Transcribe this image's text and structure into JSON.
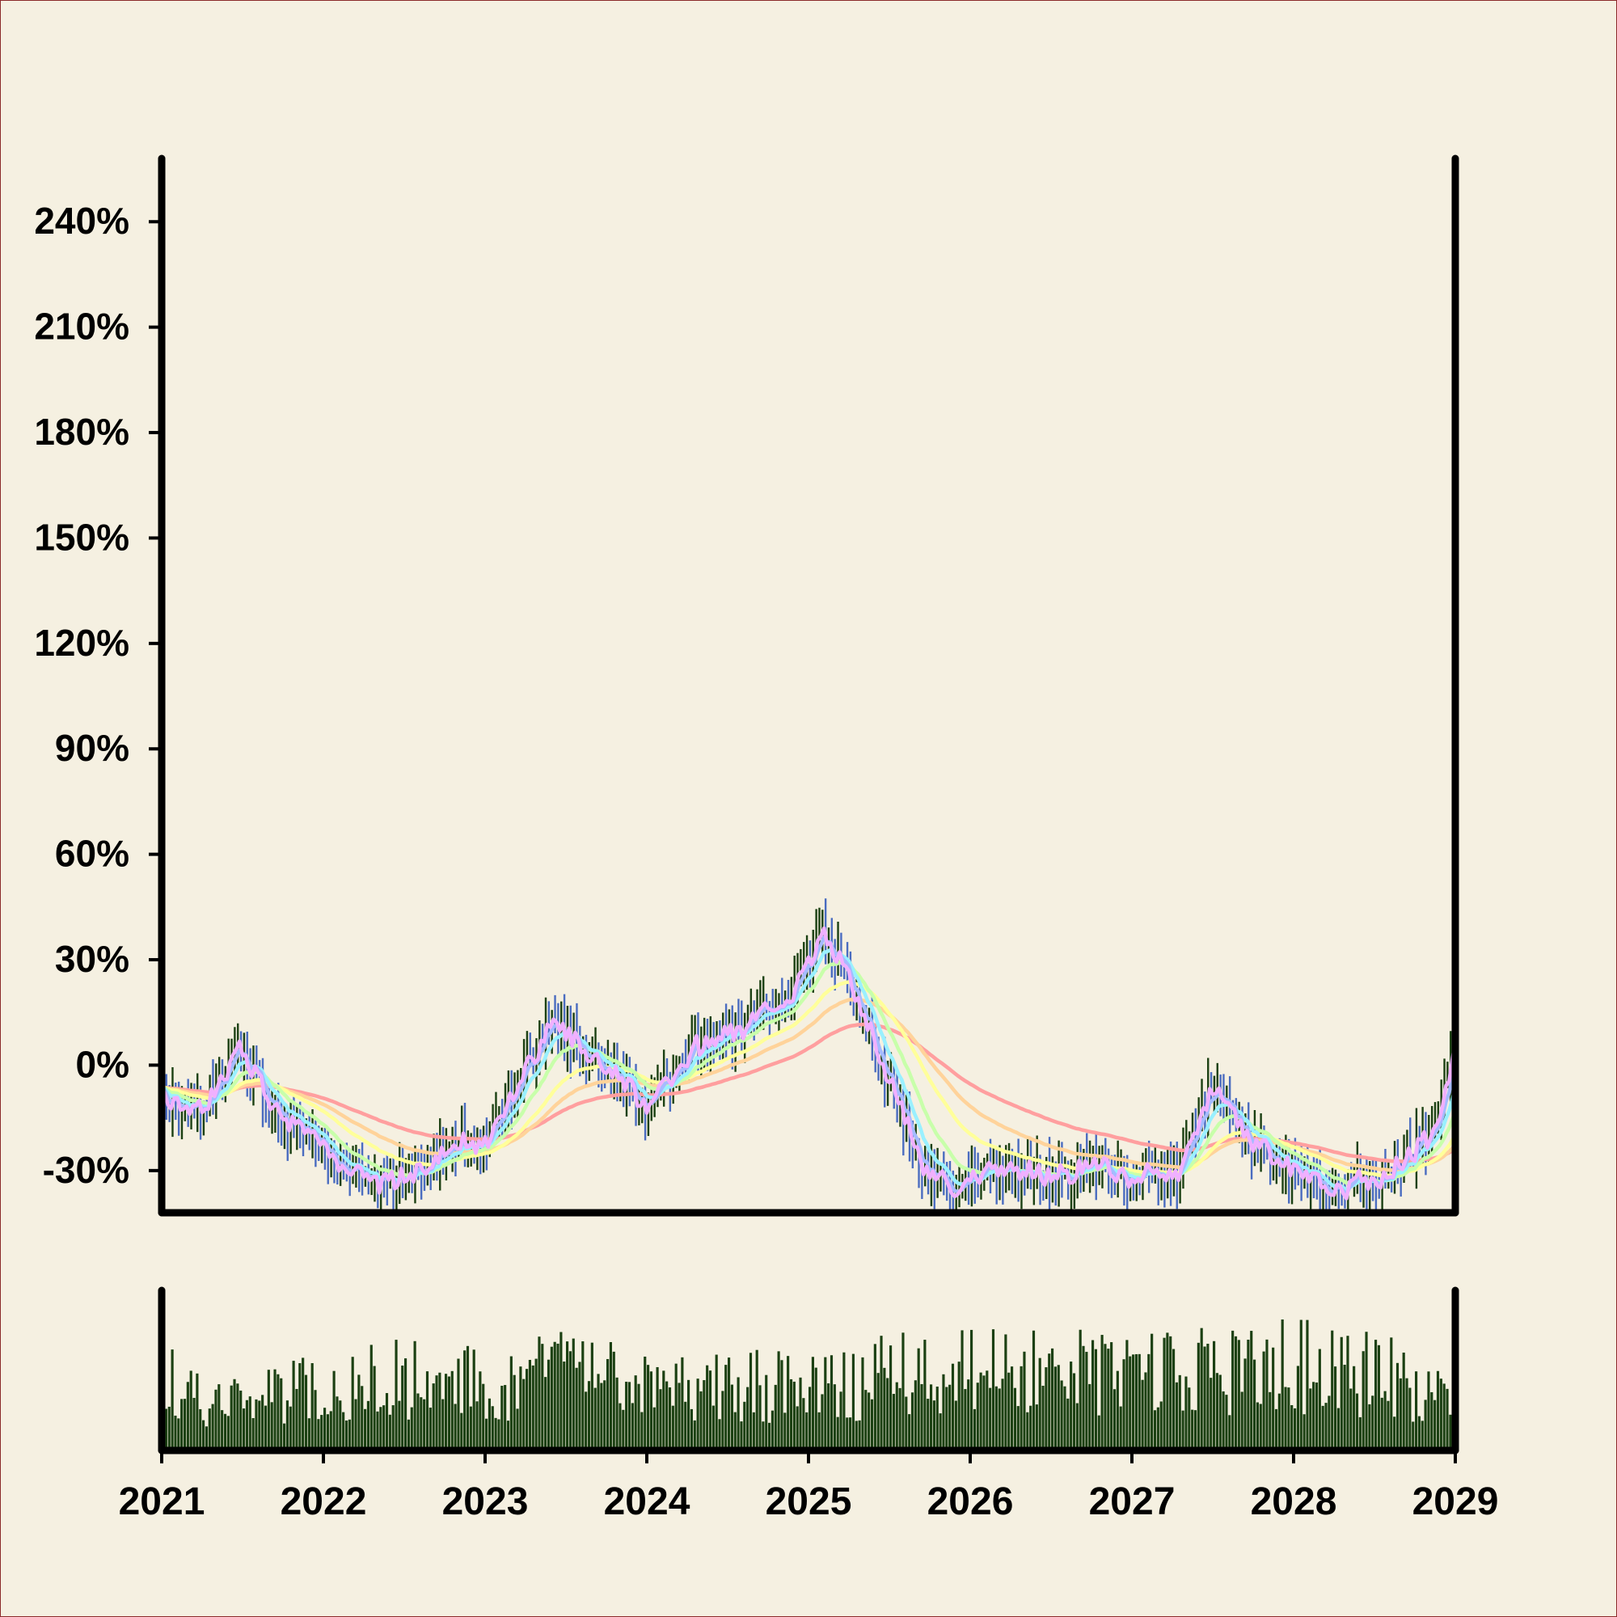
{
  "chart_data": {
    "type": "line",
    "title": "",
    "xlabel": "",
    "ylabel": "",
    "x_tick_labels": [
      "2021",
      "2022",
      "2023",
      "2024",
      "2025",
      "2026",
      "2027",
      "2028",
      "2029"
    ],
    "x_range": [
      2021,
      2029
    ],
    "y_tick_labels": [
      "-30%",
      "0%",
      "30%",
      "60%",
      "90%",
      "120%",
      "150%",
      "180%",
      "210%",
      "240%"
    ],
    "y_ticks": [
      -30,
      0,
      30,
      60,
      90,
      120,
      150,
      180,
      210,
      240
    ],
    "ylim": [
      -42,
      258
    ],
    "grid": false,
    "legend": "none",
    "up_color": "#1b4012",
    "down_color": "#4a6cc0",
    "volume_color": "#1b4012",
    "price_anchors": {
      "x": [
        2021.0,
        2021.2,
        2021.5,
        2021.7,
        2022.0,
        2022.3,
        2022.6,
        2022.8,
        2023.0,
        2023.2,
        2023.4,
        2023.7,
        2024.0,
        2024.3,
        2024.6,
        2024.9,
        2025.1,
        2025.25,
        2025.5,
        2025.7,
        2025.9,
        2026.2,
        2026.5,
        2026.8,
        2027.0,
        2027.3,
        2027.5,
        2027.7,
        2028.0,
        2028.3,
        2028.6,
        2028.9,
        2029.0
      ],
      "y": [
        -8,
        -15,
        5,
        -12,
        -25,
        -35,
        -30,
        -22,
        -22,
        -5,
        12,
        2,
        -12,
        5,
        10,
        20,
        38,
        25,
        -5,
        -28,
        -35,
        -28,
        -32,
        -28,
        -32,
        -30,
        -5,
        -20,
        -30,
        -35,
        -30,
        -18,
        5
      ]
    },
    "volume_anchors": {
      "x": [
        2021.0,
        2021.3,
        2021.6,
        2022.0,
        2022.5,
        2023.0,
        2023.5,
        2024.0,
        2024.5,
        2025.0,
        2025.5,
        2026.0,
        2026.5,
        2027.0,
        2027.5,
        2028.0,
        2028.5,
        2029.0
      ],
      "y": [
        0.55,
        0.3,
        0.4,
        0.45,
        0.55,
        0.5,
        0.55,
        0.48,
        0.5,
        0.45,
        0.55,
        0.6,
        0.58,
        0.55,
        0.6,
        0.65,
        0.58,
        0.35
      ]
    },
    "series": [
      {
        "color": "#ff9f9f",
        "smoothing": 0.02
      },
      {
        "color": "#ffd39a",
        "smoothing": 0.035
      },
      {
        "color": "#ffff9a",
        "smoothing": 0.055
      },
      {
        "color": "#c8ffaa",
        "smoothing": 0.11
      },
      {
        "color": "#9af0ff",
        "smoothing": 0.2
      },
      {
        "color": "#a5bbff",
        "smoothing": 0.4
      },
      {
        "color": "#f0b0ff",
        "smoothing": 0.8
      }
    ]
  }
}
